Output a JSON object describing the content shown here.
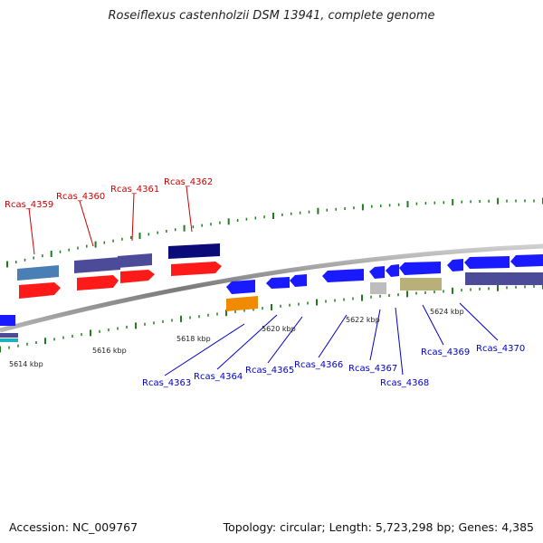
{
  "title": "Roseiflexus castenholzii DSM 13941, complete genome",
  "footer": {
    "accession": "Accession: NC_009767",
    "summary": "Topology: circular; Length: 5,723,298 bp; Genes: 4,385"
  },
  "ruler": {
    "labels": [
      "5614 kbp",
      "5616 kbp",
      "5618 kbp",
      "5620 kbp",
      "5622 kbp",
      "5624 kbp"
    ]
  },
  "genes_top": [
    {
      "label": "Rcas_4359",
      "color": "#cc0000"
    },
    {
      "label": "Rcas_4360",
      "color": "#cc0000"
    },
    {
      "label": "Rcas_4361",
      "color": "#cc0000"
    },
    {
      "label": "Rcas_4362",
      "color": "#cc0000"
    }
  ],
  "genes_bottom": [
    {
      "label": "Rcas_4363",
      "color": "#0000cc"
    },
    {
      "label": "Rcas_4364",
      "color": "#0000cc"
    },
    {
      "label": "Rcas_4365",
      "color": "#0000cc"
    },
    {
      "label": "Rcas_4366",
      "color": "#0000cc"
    },
    {
      "label": "Rcas_4367",
      "color": "#0000cc"
    },
    {
      "label": "Rcas_4368",
      "color": "#0000cc"
    },
    {
      "label": "Rcas_4369",
      "color": "#0000cc"
    },
    {
      "label": "Rcas_4370",
      "color": "#0000cc"
    }
  ],
  "colors": {
    "backbone": "#8a8a8a",
    "tick": "#1e7d1e",
    "forward_red": "#ff1a1a",
    "reverse_blue": "#1a1aff",
    "slate": "#4b4b9a",
    "navy": "#0a0a78",
    "steelblue": "#4a7fb5",
    "orange": "#f08a00",
    "olive": "#b8b078",
    "grey": "#bdbdbd"
  }
}
